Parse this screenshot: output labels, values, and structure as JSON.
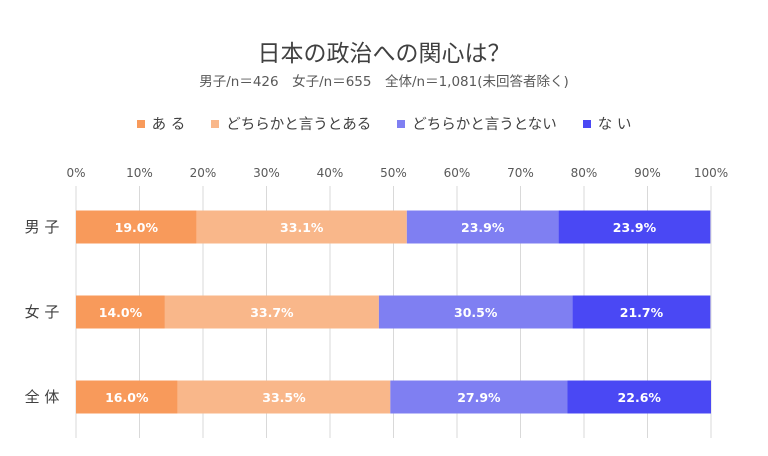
{
  "chart_data": {
    "type": "bar",
    "orientation": "horizontal-stacked-100",
    "title": "日本の政治への関心は？",
    "subtitle": "男子/n＝426　女子/n＝655　全体/n＝1,081(未回答者除く)",
    "categories": [
      "男 子",
      "女 子",
      "全 体"
    ],
    "series": [
      {
        "name": "あ る",
        "color": "#F89A5B",
        "values": [
          19.0,
          14.0,
          16.0
        ],
        "labels": [
          "19.0%",
          "14.0%",
          "16.0%"
        ]
      },
      {
        "name": "どちらかと言うとある",
        "color": "#F9B78A",
        "values": [
          33.1,
          33.7,
          33.5
        ],
        "labels": [
          "33.1%",
          "33.7%",
          "33.5%"
        ]
      },
      {
        "name": "どちらかと言うとない",
        "color": "#7F7FF2",
        "values": [
          23.9,
          30.5,
          27.9
        ],
        "labels": [
          "23.9%",
          "30.5%",
          "27.9%"
        ]
      },
      {
        "name": "な い",
        "color": "#4A48F4",
        "values": [
          23.9,
          21.7,
          22.6
        ],
        "labels": [
          "23.9%",
          "21.7%",
          "22.6%"
        ]
      }
    ],
    "xlim": [
      0,
      100
    ],
    "xticks": [
      "0%",
      "10%",
      "20%",
      "30%",
      "40%",
      "50%",
      "60%",
      "70%",
      "80%",
      "90%",
      "100%"
    ],
    "grid": true,
    "legend_position": "top"
  }
}
